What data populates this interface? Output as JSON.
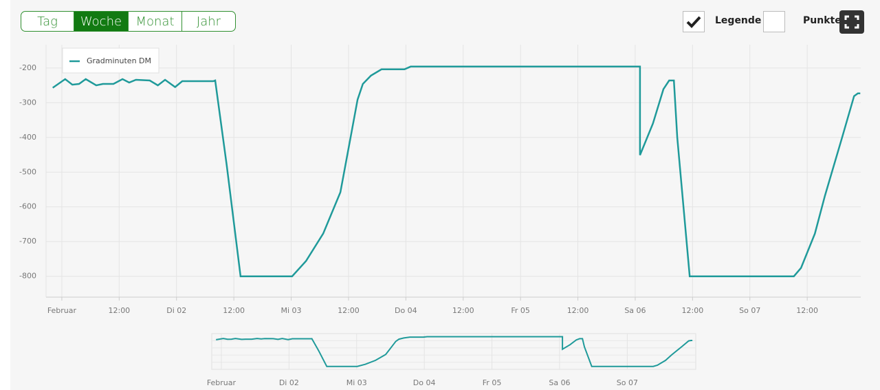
{
  "controls": {
    "range_buttons": [
      "Tag",
      "Woche",
      "Monat",
      "Jahr"
    ],
    "active": 1,
    "legend_toggle": {
      "label": "Legende",
      "checked": true
    },
    "points_toggle": {
      "label": "Punkte",
      "checked": false
    }
  },
  "chart_data": {
    "type": "line",
    "grid": true,
    "legend": "top-left",
    "x": [
      -1.9,
      0.7,
      2.2,
      3.6,
      5.0,
      7.2,
      8.6,
      10.8,
      12.7,
      14.1,
      15.5,
      18.4,
      20.1,
      21.6,
      23.7,
      25.2,
      31.7,
      32.1,
      34.5,
      37.4,
      48.2,
      51.1,
      54.7,
      58.3,
      60.7,
      61.9,
      63.0,
      64.7,
      66.9,
      71.7,
      73.0,
      121.0,
      121.0,
      123.7,
      125.9,
      127.1,
      128.1,
      128.8,
      131.4,
      153.2,
      154.7,
      157.6,
      159.7,
      163.3,
      165.8,
      166.6,
      167.1
    ],
    "series": [
      {
        "name": "Gradminuten DM",
        "color": "#1f9a9a",
        "values": [
          -257,
          -232,
          -248,
          -246,
          -232,
          -250,
          -246,
          -246,
          -232,
          -242,
          -234,
          -236,
          -250,
          -234,
          -255,
          -238,
          -238,
          -236,
          -479,
          -800,
          -800,
          -756,
          -677,
          -558,
          -380,
          -291,
          -246,
          -222,
          -204,
          -204,
          -196,
          -196,
          -451,
          -360,
          -261,
          -236,
          -236,
          -400,
          -800,
          -800,
          -776,
          -677,
          -568,
          -400,
          -281,
          -273,
          -273
        ]
      }
    ],
    "xlim": [
      -3.3,
      167.2
    ],
    "ylim": [
      -860,
      -133
    ],
    "yticks": [
      -200,
      -300,
      -400,
      -500,
      -600,
      -700,
      -800
    ],
    "xticks": [
      {
        "value": 0,
        "label": "Februar"
      },
      {
        "value": 12,
        "label": "12:00"
      },
      {
        "value": 24,
        "label": "Di 02"
      },
      {
        "value": 36,
        "label": "12:00"
      },
      {
        "value": 48,
        "label": "Mi 03"
      },
      {
        "value": 60,
        "label": "12:00"
      },
      {
        "value": 72,
        "label": "Do 04"
      },
      {
        "value": 84,
        "label": "12:00"
      },
      {
        "value": 96,
        "label": "Fr 05"
      },
      {
        "value": 108,
        "label": "12:00"
      },
      {
        "value": 120,
        "label": "Sa 06"
      },
      {
        "value": 132,
        "label": "12:00"
      },
      {
        "value": 144,
        "label": "So 07"
      },
      {
        "value": 156,
        "label": "12:00"
      }
    ],
    "navigator": {
      "xlim": [
        -3.4,
        168.3
      ],
      "xticks": [
        {
          "value": 0,
          "label": "Februar"
        },
        {
          "value": 24,
          "label": "Di 02"
        },
        {
          "value": 48,
          "label": "Mi 03"
        },
        {
          "value": 72,
          "label": "Do 04"
        },
        {
          "value": 96,
          "label": "Fr 05"
        },
        {
          "value": 120,
          "label": "Sa 06"
        },
        {
          "value": 144,
          "label": "So 07"
        }
      ]
    }
  }
}
